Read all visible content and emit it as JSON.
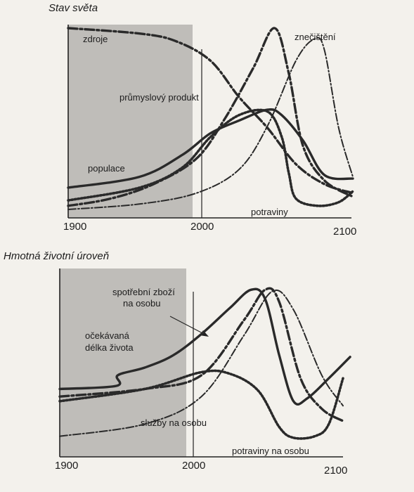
{
  "chart_data": [
    {
      "type": "line",
      "title": "Stav světa",
      "xlim": [
        1900,
        2100
      ],
      "x_ticks": [
        "1900",
        "2000",
        "2100"
      ],
      "shaded_range": [
        1900,
        1995
      ],
      "present_line": 2000,
      "series": [
        {
          "name": "zdroje",
          "style": "dashdot-heavy",
          "points": [
            [
              1900,
              100
            ],
            [
              1950,
              97
            ],
            [
              1975,
              93
            ],
            [
              2000,
              82
            ],
            [
              2020,
              62
            ],
            [
              2040,
              45
            ],
            [
              2060,
              25
            ],
            [
              2080,
              14
            ],
            [
              2100,
              9
            ]
          ]
        },
        {
          "name": "průmyslový produkt",
          "style": "dashdot-heavy",
          "points": [
            [
              1900,
              2
            ],
            [
              1930,
              6
            ],
            [
              1960,
              14
            ],
            [
              1990,
              28
            ],
            [
              2010,
              50
            ],
            [
              2030,
              78
            ],
            [
              2045,
              100
            ],
            [
              2055,
              75
            ],
            [
              2065,
              35
            ],
            [
              2080,
              16
            ],
            [
              2100,
              7
            ]
          ]
        },
        {
          "name": "znečištění",
          "style": "dashdot-light",
          "points": [
            [
              1900,
              0
            ],
            [
              1950,
              3
            ],
            [
              1990,
              9
            ],
            [
              2020,
              22
            ],
            [
              2040,
              46
            ],
            [
              2060,
              82
            ],
            [
              2073,
              94
            ],
            [
              2080,
              88
            ],
            [
              2090,
              45
            ],
            [
              2100,
              18
            ]
          ]
        },
        {
          "name": "populace",
          "style": "solid",
          "points": [
            [
              1900,
              12
            ],
            [
              1950,
              18
            ],
            [
              1980,
              30
            ],
            [
              2000,
              42
            ],
            [
              2020,
              49
            ],
            [
              2040,
              55
            ],
            [
              2050,
              52
            ],
            [
              2065,
              38
            ],
            [
              2080,
              19
            ],
            [
              2100,
              17
            ]
          ]
        },
        {
          "name": "potraviny",
          "style": "dotted",
          "points": [
            [
              1900,
              5
            ],
            [
              1950,
              12
            ],
            [
              1980,
              23
            ],
            [
              2000,
              40
            ],
            [
              2020,
              52
            ],
            [
              2040,
              54
            ],
            [
              2050,
              40
            ],
            [
              2055,
              20
            ],
            [
              2060,
              6
            ],
            [
              2075,
              2
            ],
            [
              2090,
              4
            ],
            [
              2100,
              10
            ]
          ]
        }
      ]
    },
    {
      "type": "line",
      "title": "Hmotná životní úroveň",
      "xlim": [
        1900,
        2100
      ],
      "x_ticks": [
        "1900",
        "2000",
        "2100"
      ],
      "shaded_range": [
        1900,
        1990
      ],
      "present_line": 2000,
      "series": [
        {
          "name": "očekávaná délka života",
          "style": "solid",
          "points": [
            [
              1900,
              33
            ],
            [
              1940,
              35
            ],
            [
              1941,
              42
            ],
            [
              1960,
              47
            ],
            [
              1980,
              55
            ],
            [
              2000,
              69
            ],
            [
              2020,
              86
            ],
            [
              2035,
              98
            ],
            [
              2045,
              92
            ],
            [
              2055,
              55
            ],
            [
              2065,
              25
            ],
            [
              2075,
              27
            ],
            [
              2090,
              40
            ],
            [
              2105,
              54
            ]
          ]
        },
        {
          "name": "spotřební zboží na osobu",
          "style": "dashdot-heavy",
          "points": [
            [
              1900,
              28
            ],
            [
              1960,
              33
            ],
            [
              2000,
              42
            ],
            [
              2030,
              78
            ],
            [
              2045,
              98
            ],
            [
              2055,
              90
            ],
            [
              2070,
              40
            ],
            [
              2085,
              20
            ],
            [
              2100,
              12
            ]
          ]
        },
        {
          "name": "služby na osobu",
          "style": "dashdot-light",
          "points": [
            [
              1900,
              2
            ],
            [
              1960,
              10
            ],
            [
              2000,
              28
            ],
            [
              2030,
              68
            ],
            [
              2050,
              97
            ],
            [
              2065,
              85
            ],
            [
              2085,
              42
            ],
            [
              2100,
              22
            ]
          ]
        },
        {
          "name": "potraviny na osobu",
          "style": "dotted",
          "points": [
            [
              1900,
              25
            ],
            [
              1960,
              33
            ],
            [
              2000,
              44
            ],
            [
              2020,
              43
            ],
            [
              2040,
              32
            ],
            [
              2055,
              8
            ],
            [
              2065,
              1
            ],
            [
              2080,
              2
            ],
            [
              2090,
              10
            ],
            [
              2100,
              40
            ]
          ]
        }
      ]
    }
  ]
}
